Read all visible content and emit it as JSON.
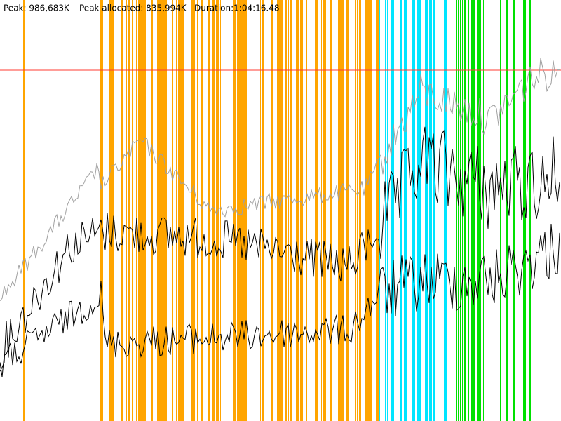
{
  "header": {
    "peak": "Peak: 986,683K",
    "peak_allocated": "Peak allocated: 835,994K",
    "duration": "Duration:1:04:16.48"
  }
}
